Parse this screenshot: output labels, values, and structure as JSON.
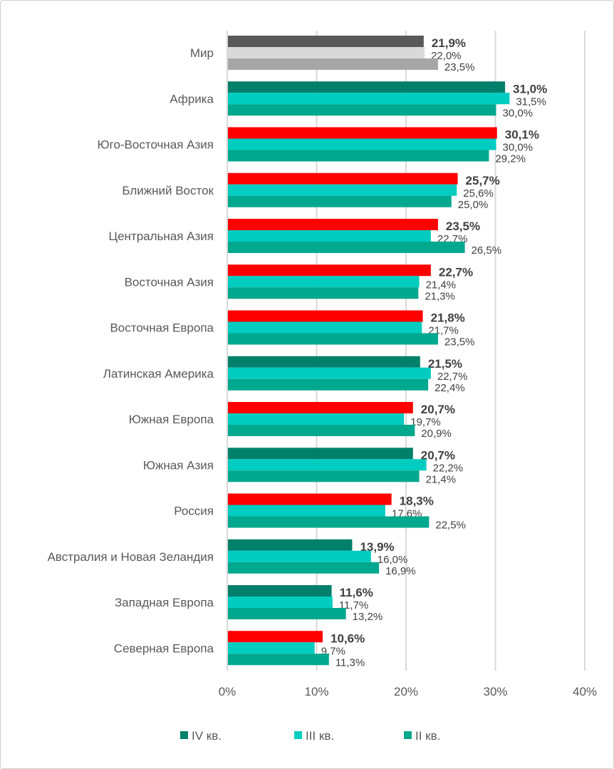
{
  "chart_data": {
    "type": "bar",
    "orientation": "horizontal",
    "categories": [
      "Мир",
      "Африка",
      "Юго-Восточная Азия",
      "Ближний Восток",
      "Центральная Азия",
      "Восточная Азия",
      "Восточная Европа",
      "Латинская Америка",
      "Южная Европа",
      "Южная Азия",
      "Россия",
      "Австралия и Новая Зеландия",
      "Западная Европа",
      "Северная Европа"
    ],
    "series": [
      {
        "name": "IV кв.",
        "color": "#00806A",
        "values": [
          21.9,
          31.0,
          30.1,
          25.7,
          23.5,
          22.7,
          21.8,
          21.5,
          20.7,
          20.7,
          18.3,
          13.9,
          11.6,
          10.6
        ],
        "labels": [
          "21,9%",
          "31,0%",
          "30,1%",
          "25,7%",
          "23,5%",
          "22,7%",
          "21,8%",
          "21,5%",
          "20,7%",
          "20,7%",
          "18,3%",
          "13,9%",
          "11,6%",
          "10,6%"
        ]
      },
      {
        "name": "III кв.",
        "color": "#00CCC0",
        "values": [
          22.0,
          31.5,
          30.0,
          25.6,
          22.7,
          21.4,
          21.7,
          22.7,
          19.7,
          22.2,
          17.6,
          16.0,
          11.7,
          9.7
        ],
        "labels": [
          "22,0%",
          "31,5%",
          "30,0%",
          "25,6%",
          "22,7%",
          "21,4%",
          "21,7%",
          "22,7%",
          "19,7%",
          "22,2%",
          "17,6%",
          "16,0%",
          "11,7%",
          "9,7%"
        ]
      },
      {
        "name": "II кв.",
        "color": "#00A88E",
        "values": [
          23.5,
          30.0,
          29.2,
          25.0,
          26.5,
          21.3,
          23.5,
          22.4,
          20.9,
          21.4,
          22.5,
          16.9,
          13.2,
          11.3
        ],
        "labels": [
          "23,5%",
          "30,0%",
          "29,2%",
          "25,0%",
          "26,5%",
          "21,3%",
          "23,5%",
          "22,4%",
          "20,9%",
          "21,4%",
          "22,5%",
          "16,9%",
          "13,2%",
          "11,3%"
        ]
      }
    ],
    "iv_bar_colors": [
      "#595959",
      "#00806A",
      "#FF0000",
      "#FF0000",
      "#FF0000",
      "#FF0000",
      "#FF0000",
      "#00806A",
      "#FF0000",
      "#00806A",
      "#FF0000",
      "#00806A",
      "#00806A",
      "#FF0000"
    ],
    "world_colors": [
      "#595959",
      "#D9D9D9",
      "#A6A6A6"
    ],
    "xlim": [
      0,
      40
    ],
    "xticks": [
      0,
      10,
      20,
      30,
      40
    ],
    "xtick_labels": [
      "0%",
      "10%",
      "20%",
      "30%",
      "40%"
    ],
    "grid": true,
    "legend_placement": "bottom"
  }
}
